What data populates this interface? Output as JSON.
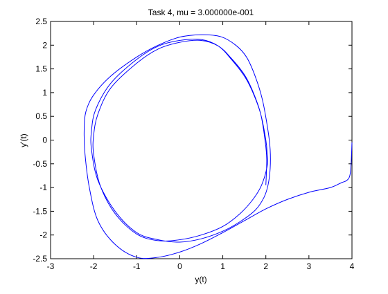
{
  "colors": {
    "background": "#ffffff",
    "axes": "#000000",
    "line": "#0000ff"
  },
  "chart_data": {
    "type": "line",
    "title": "Task 4, mu = 3.000000e-001",
    "xlabel": "y(t)",
    "ylabel": "y'(t)",
    "xlim": [
      -3,
      4
    ],
    "ylim": [
      -2.5,
      2.5
    ],
    "xticks": [
      -3,
      -2,
      -1,
      0,
      1,
      2,
      3,
      4
    ],
    "yticks": [
      -2.5,
      -2,
      -1.5,
      -1,
      -0.5,
      0,
      0.5,
      1,
      1.5,
      2,
      2.5
    ],
    "xtick_labels": [
      "-3",
      "-2",
      "-1",
      "0",
      "1",
      "2",
      "3",
      "4"
    ],
    "ytick_labels": [
      "-2.5",
      "-2",
      "-1.5",
      "-1",
      "-0.5",
      "0",
      "0.5",
      "1",
      "1.5",
      "2",
      "2.5"
    ],
    "grid": false,
    "box": true,
    "series": [
      {
        "color": "#0000ff",
        "x": [
          4.0,
          3.98,
          3.95,
          3.88,
          3.75,
          3.5,
          3.0,
          2.5,
          2.0,
          1.5,
          1.0,
          0.5,
          0.0,
          -0.5,
          -1.0,
          -1.5,
          -1.9,
          -2.1,
          -2.2,
          -2.22,
          -2.18,
          -2.0,
          -1.6,
          -1.0,
          -0.5,
          0.0,
          0.5,
          0.95,
          1.3,
          1.55,
          1.75,
          1.92,
          2.05,
          2.1,
          2.1,
          2.05,
          1.95,
          1.75,
          1.4,
          1.0,
          0.5,
          0.0,
          -0.5,
          -1.0,
          -1.5,
          -1.9,
          -2.05,
          -2.05,
          -1.95,
          -1.6,
          -1.0,
          -0.5,
          0.0,
          0.5,
          0.9,
          1.2,
          1.5,
          1.7,
          1.88,
          2.0,
          2.03,
          2.03,
          1.9,
          1.7,
          1.4,
          1.0,
          0.5,
          0.0,
          -0.5,
          -1.0,
          -1.5,
          -1.85,
          -2.0,
          -2.0,
          -1.9,
          -1.6,
          -1.0,
          -0.5,
          0.0,
          0.5,
          0.9,
          1.2,
          1.5,
          1.7,
          1.88,
          1.98,
          2.02,
          2.0
        ],
        "y": [
          -0.05,
          -0.5,
          -0.75,
          -0.85,
          -0.9,
          -1.0,
          -1.1,
          -1.25,
          -1.45,
          -1.7,
          -1.95,
          -2.18,
          -2.36,
          -2.47,
          -2.47,
          -2.2,
          -1.7,
          -1.0,
          -0.3,
          0.2,
          0.6,
          0.95,
          1.35,
          1.75,
          2.0,
          2.17,
          2.22,
          2.18,
          2.0,
          1.75,
          1.35,
          0.85,
          0.2,
          -0.2,
          -0.6,
          -0.95,
          -1.22,
          -1.48,
          -1.72,
          -1.92,
          -2.08,
          -2.15,
          -2.1,
          -1.95,
          -1.5,
          -0.85,
          -0.2,
          0.2,
          0.65,
          1.2,
          1.7,
          1.98,
          2.1,
          2.12,
          1.98,
          1.7,
          1.35,
          1.0,
          0.55,
          0.0,
          -0.3,
          -0.55,
          -0.95,
          -1.25,
          -1.55,
          -1.82,
          -2.0,
          -2.1,
          -2.12,
          -1.98,
          -1.55,
          -0.95,
          -0.3,
          0.1,
          0.55,
          1.1,
          1.62,
          1.92,
          2.06,
          2.1,
          1.98,
          1.72,
          1.38,
          1.02,
          0.55,
          0.0,
          -0.4,
          -0.95
        ]
      }
    ]
  }
}
